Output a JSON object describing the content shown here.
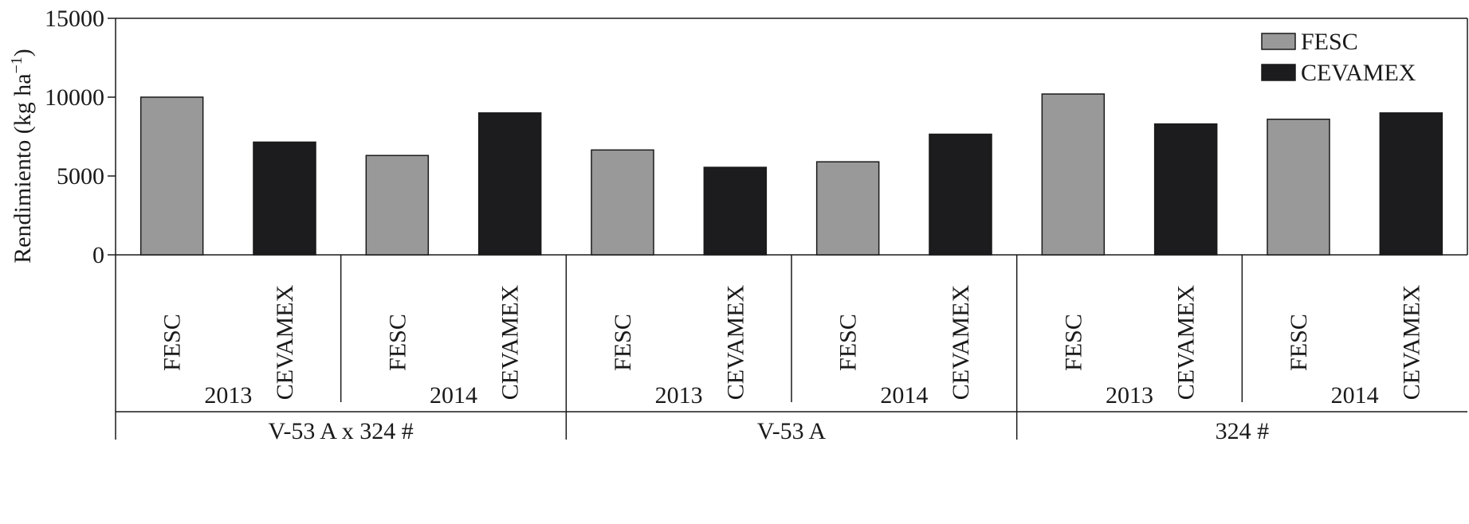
{
  "chart_data": {
    "type": "bar",
    "ylabel": "Rendimiento (kg ha",
    "ylabel_sup": "−1",
    "ylabel_close": ")",
    "ylim": [
      0,
      15000
    ],
    "yticks": [
      "0",
      "5000",
      "10000",
      "15000"
    ],
    "grid": false,
    "legend_position": "top-right",
    "series": [
      {
        "name": "FESC",
        "color": "#999999"
      },
      {
        "name": "CEVAMEX",
        "color": "#1c1c1e"
      }
    ],
    "groups": [
      {
        "name": "V-53 A x 324 #",
        "years": [
          {
            "label": "2013",
            "bars": [
              {
                "category": "FESC",
                "value": 10000
              },
              {
                "category": "CEVAMEX",
                "value": 7150
              }
            ]
          },
          {
            "label": "2014",
            "bars": [
              {
                "category": "FESC",
                "value": 6300
              },
              {
                "category": "CEVAMEX",
                "value": 9000
              }
            ]
          }
        ]
      },
      {
        "name": "V-53 A",
        "years": [
          {
            "label": "2013",
            "bars": [
              {
                "category": "FESC",
                "value": 6650
              },
              {
                "category": "CEVAMEX",
                "value": 5550
              }
            ]
          },
          {
            "label": "2014",
            "bars": [
              {
                "category": "FESC",
                "value": 5900
              },
              {
                "category": "CEVAMEX",
                "value": 7650
              }
            ]
          }
        ]
      },
      {
        "name": "324 #",
        "years": [
          {
            "label": "2013",
            "bars": [
              {
                "category": "FESC",
                "value": 10200
              },
              {
                "category": "CEVAMEX",
                "value": 8300
              }
            ]
          },
          {
            "label": "2014",
            "bars": [
              {
                "category": "FESC",
                "value": 8600
              },
              {
                "category": "CEVAMEX",
                "value": 9000
              }
            ]
          }
        ]
      }
    ]
  }
}
